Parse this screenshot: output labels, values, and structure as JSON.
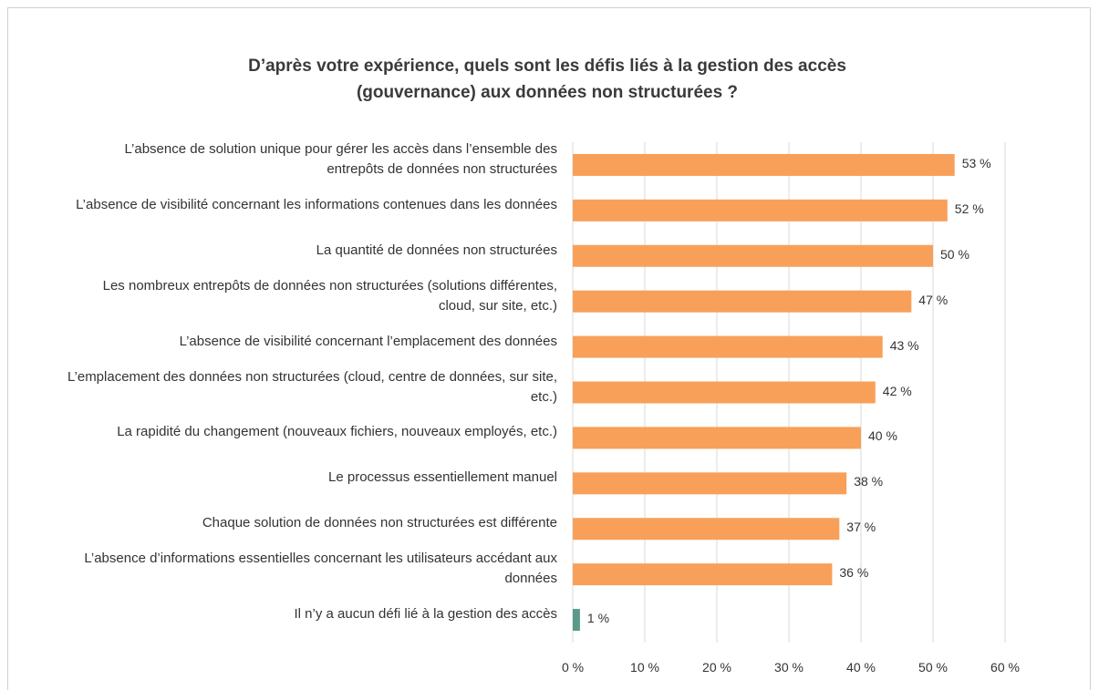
{
  "chart_data": {
    "type": "bar",
    "orientation": "horizontal",
    "title": "D’après votre expérience, quels sont les défis liés à la gestion des accès (gouvernance) aux données non structurées ?",
    "categories": [
      "L’absence de solution unique pour gérer les accès dans l’ensemble des entrepôts de données non structurées",
      "L’absence de visibilité concernant les informations contenues dans les données",
      "La quantité de données non structurées",
      "Les nombreux entrepôts de données non structurées (solutions différentes, cloud, sur site, etc.)",
      "L’absence de visibilité concernant l’emplacement des données",
      "L’emplacement des données non structurées (cloud, centre de données, sur site, etc.)",
      "La rapidité du changement (nouveaux fichiers, nouveaux employés, etc.)",
      "Le processus essentiellement manuel",
      "Chaque solution de données non structurées est différente",
      "L’absence d’informations essentielles concernant les utilisateurs accédant aux données",
      "Il n’y a aucun défi lié à la gestion des accès"
    ],
    "values": [
      53,
      52,
      50,
      47,
      43,
      42,
      40,
      38,
      37,
      36,
      1
    ],
    "value_labels": [
      "53 %",
      "52 %",
      "50 %",
      "47 %",
      "43 %",
      "42 %",
      "40 %",
      "38 %",
      "37 %",
      "36 %",
      "1 %"
    ],
    "colors": [
      "#f8a05a",
      "#f8a05a",
      "#f8a05a",
      "#f8a05a",
      "#f8a05a",
      "#f8a05a",
      "#f8a05a",
      "#f8a05a",
      "#f8a05a",
      "#f8a05a",
      "#5b9a8b"
    ],
    "xlim": [
      0,
      60
    ],
    "xticks": [
      {
        "value": 0,
        "label": "0 %"
      },
      {
        "value": 10,
        "label": "10 %"
      },
      {
        "value": 20,
        "label": "20 %"
      },
      {
        "value": 30,
        "label": "30 %"
      },
      {
        "value": 40,
        "label": "40 %"
      },
      {
        "value": 50,
        "label": "50 %"
      },
      {
        "value": 60,
        "label": "60 %"
      }
    ],
    "grid": true
  }
}
